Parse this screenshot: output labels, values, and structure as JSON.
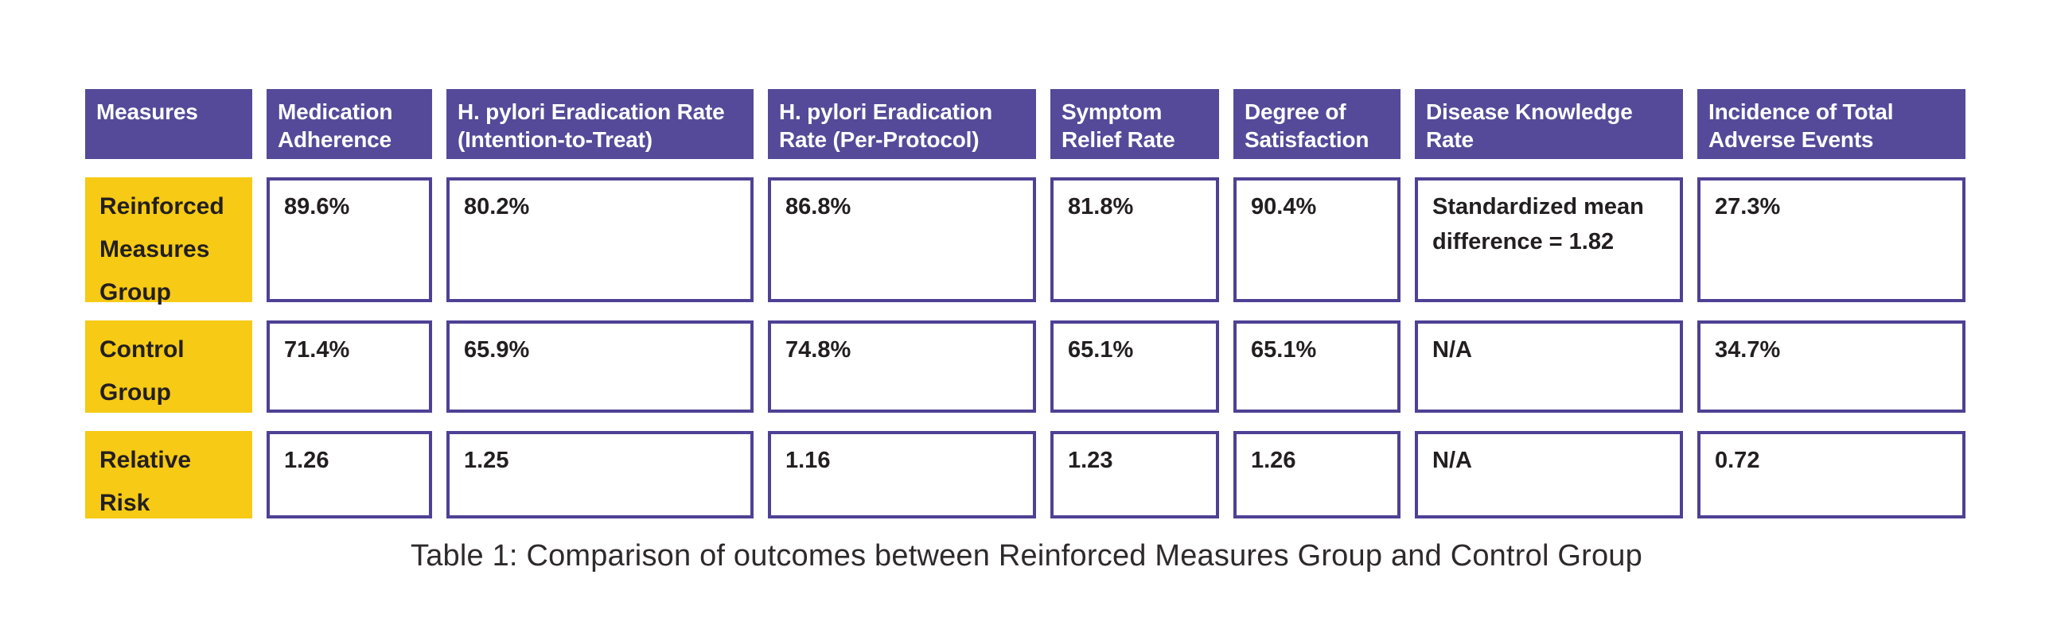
{
  "table": {
    "caption": "Table 1: Comparison of outcomes between Reinforced Measures Group and Control Group",
    "columns": [
      "Measures",
      "Medication Adherence",
      "H. pylori Eradication Rate (Intention-to-Treat)",
      "H. pylori Eradication Rate (Per-Protocol)",
      "Symptom Relief Rate",
      "Degree of Satisfaction",
      "Disease Knowledge Rate",
      "Incidence of Total Adverse Events"
    ],
    "rows": [
      {
        "label": "Reinforced Measures Group",
        "values": [
          "89.6%",
          "80.2%",
          "86.8%",
          "81.8%",
          "90.4%",
          "Standardized mean difference = 1.82",
          "27.3%"
        ]
      },
      {
        "label": "Control Group",
        "values": [
          "71.4%",
          "65.9%",
          "74.8%",
          "65.1%",
          "65.1%",
          "N/A",
          "34.7%"
        ]
      },
      {
        "label": "Relative Risk",
        "values": [
          "1.26",
          "1.25",
          "1.16",
          "1.23",
          "1.26",
          "N/A",
          "0.72"
        ]
      }
    ],
    "colors": {
      "header_bg": "#554a99",
      "cell_border": "#4e4195",
      "row_label_bg": "#f6ca15",
      "header_text": "#ffffff",
      "body_text": "#231f20"
    }
  },
  "chart_data": {
    "type": "table",
    "title": "Table 1: Comparison of outcomes between Reinforced Measures Group and Control Group",
    "columns": [
      "Measures",
      "Medication Adherence",
      "H. pylori Eradication Rate (Intention-to-Treat)",
      "H. pylori Eradication Rate (Per-Protocol)",
      "Symptom Relief Rate",
      "Degree of Satisfaction",
      "Disease Knowledge Rate",
      "Incidence of Total Adverse Events"
    ],
    "rows": [
      [
        "Reinforced Measures Group",
        "89.6%",
        "80.2%",
        "86.8%",
        "81.8%",
        "90.4%",
        "Standardized mean difference = 1.82",
        "27.3%"
      ],
      [
        "Control Group",
        "71.4%",
        "65.9%",
        "74.8%",
        "65.1%",
        "65.1%",
        "N/A",
        "34.7%"
      ],
      [
        "Relative Risk",
        "1.26",
        "1.25",
        "1.16",
        "1.23",
        "1.26",
        "N/A",
        "0.72"
      ]
    ],
    "numeric_values": {
      "reinforced_measures_group": {
        "medication_adherence_pct": 89.6,
        "eradication_itt_pct": 80.2,
        "eradication_pp_pct": 86.8,
        "symptom_relief_pct": 81.8,
        "satisfaction_pct": 90.4,
        "knowledge_standardized_mean_difference": 1.82,
        "adverse_events_pct": 27.3
      },
      "control_group": {
        "medication_adherence_pct": 71.4,
        "eradication_itt_pct": 65.9,
        "eradication_pp_pct": 74.8,
        "symptom_relief_pct": 65.1,
        "satisfaction_pct": 65.1,
        "knowledge": null,
        "adverse_events_pct": 34.7
      },
      "relative_risk": {
        "medication_adherence": 1.26,
        "eradication_itt": 1.25,
        "eradication_pp": 1.16,
        "symptom_relief": 1.23,
        "satisfaction": 1.26,
        "knowledge": null,
        "adverse_events": 0.72
      }
    }
  }
}
